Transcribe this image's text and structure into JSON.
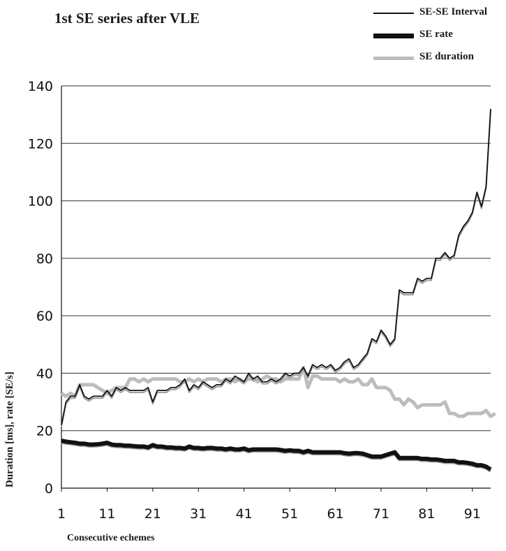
{
  "chart_data": {
    "type": "line",
    "title": "1st SE series after VLE",
    "xlabel": "Consecutive echemes",
    "ylabel": "Duration [ms], rate [SE/s]",
    "xlim": [
      1,
      95
    ],
    "ylim": [
      0,
      140
    ],
    "x_ticks": [
      "1",
      "11",
      "21",
      "31",
      "41",
      "51",
      "61",
      "71",
      "81",
      "91"
    ],
    "y_ticks": [
      "0",
      "20",
      "40",
      "60",
      "80",
      "100",
      "120",
      "140"
    ],
    "grid": "horizontal",
    "legend_position": "top-right",
    "series": [
      {
        "name": "SE-SE Interval",
        "color": "#111111",
        "values": [
          22,
          30,
          32,
          32,
          36,
          32,
          31,
          32,
          32,
          32,
          34,
          32,
          35,
          34,
          35,
          34,
          34,
          34,
          34,
          35,
          30,
          34,
          34,
          34,
          35,
          35,
          36,
          38,
          34,
          36,
          35,
          37,
          36,
          35,
          36,
          36,
          38,
          37,
          39,
          38,
          37,
          40,
          38,
          39,
          37,
          37,
          38,
          37,
          38,
          40,
          39,
          40,
          40,
          42,
          39,
          43,
          42,
          43,
          42,
          43,
          41,
          42,
          44,
          45,
          42,
          43,
          45,
          47,
          52,
          51,
          55,
          53,
          50,
          52,
          69,
          68,
          68,
          68,
          73,
          72,
          73,
          73,
          80,
          80,
          82,
          80,
          81,
          88,
          91,
          93,
          96,
          103,
          98,
          105,
          132
        ]
      },
      {
        "name": "SE rate",
        "color": "#111111",
        "values": [
          16.5,
          16.2,
          16,
          15.8,
          15.5,
          15.5,
          15.2,
          15.2,
          15.3,
          15.5,
          15.8,
          15.2,
          15,
          15,
          14.8,
          14.8,
          14.6,
          14.5,
          14.5,
          14.2,
          15,
          14.5,
          14.5,
          14.2,
          14.2,
          14,
          14,
          13.8,
          14.5,
          14,
          14,
          13.8,
          14,
          14,
          13.8,
          13.8,
          13.5,
          13.8,
          13.5,
          13.5,
          13.8,
          13.2,
          13.5,
          13.5,
          13.5,
          13.5,
          13.5,
          13.5,
          13.3,
          13,
          13.2,
          13,
          13,
          12.5,
          13,
          12.5,
          12.5,
          12.5,
          12.5,
          12.5,
          12.5,
          12.5,
          12.2,
          12,
          12.2,
          12.2,
          12,
          11.5,
          11,
          11,
          11,
          11.5,
          12,
          12.5,
          10.5,
          10.5,
          10.5,
          10.5,
          10.5,
          10.2,
          10.2,
          10,
          10,
          9.8,
          9.5,
          9.5,
          9.5,
          9,
          9,
          8.8,
          8.5,
          8,
          8,
          7.5,
          6.5
        ]
      },
      {
        "name": "SE duration",
        "color": "#bdbdbd",
        "values": [
          33,
          32,
          33,
          32,
          36,
          36,
          36,
          36,
          35,
          34,
          33,
          34,
          35,
          35,
          35,
          38,
          38,
          37,
          38,
          37,
          38,
          38,
          38,
          38,
          38,
          38,
          37,
          37,
          38,
          37,
          38,
          37,
          38,
          38,
          38,
          37,
          38,
          38,
          37,
          38,
          37,
          38,
          38,
          37,
          38,
          39,
          38,
          38,
          37,
          38,
          38,
          38,
          38,
          42,
          35,
          39,
          39,
          38,
          38,
          38,
          38,
          37,
          38,
          37,
          37,
          38,
          36,
          36,
          38,
          35,
          35,
          35,
          34,
          31,
          31,
          29,
          31,
          30,
          28,
          29,
          29,
          29,
          29,
          29,
          30,
          26,
          26,
          25,
          25,
          26,
          26,
          26,
          26,
          27,
          25,
          26
        ]
      }
    ]
  }
}
